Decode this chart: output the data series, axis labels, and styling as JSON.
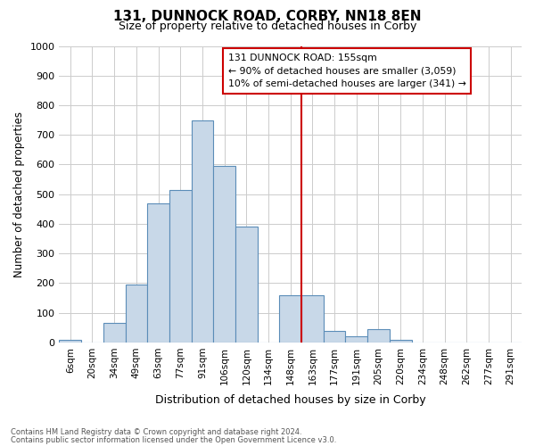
{
  "title1": "131, DUNNOCK ROAD, CORBY, NN18 8EN",
  "title2": "Size of property relative to detached houses in Corby",
  "xlabel": "Distribution of detached houses by size in Corby",
  "ylabel": "Number of detached properties",
  "bin_labels": [
    "6sqm",
    "20sqm",
    "34sqm",
    "49sqm",
    "63sqm",
    "77sqm",
    "91sqm",
    "106sqm",
    "120sqm",
    "134sqm",
    "148sqm",
    "163sqm",
    "177sqm",
    "191sqm",
    "205sqm",
    "220sqm",
    "234sqm",
    "248sqm",
    "262sqm",
    "277sqm",
    "291sqm"
  ],
  "bar_values": [
    10,
    0,
    65,
    195,
    470,
    515,
    750,
    595,
    390,
    0,
    160,
    160,
    40,
    20,
    45,
    10,
    0,
    0,
    0,
    0,
    0
  ],
  "bar_color": "#c8d8e8",
  "bar_edge_color": "#5b8db8",
  "vline_x": 10.5,
  "vline_color": "#cc0000",
  "ylim": [
    0,
    1000
  ],
  "yticks": [
    0,
    100,
    200,
    300,
    400,
    500,
    600,
    700,
    800,
    900,
    1000
  ],
  "annotation_title": "131 DUNNOCK ROAD: 155sqm",
  "annotation_line1": "← 90% of detached houses are smaller (3,059)",
  "annotation_line2": "10% of semi-detached houses are larger (341) →",
  "footer1": "Contains HM Land Registry data © Crown copyright and database right 2024.",
  "footer2": "Contains public sector information licensed under the Open Government Licence v3.0.",
  "bg_color": "#ffffff",
  "grid_color": "#cccccc"
}
